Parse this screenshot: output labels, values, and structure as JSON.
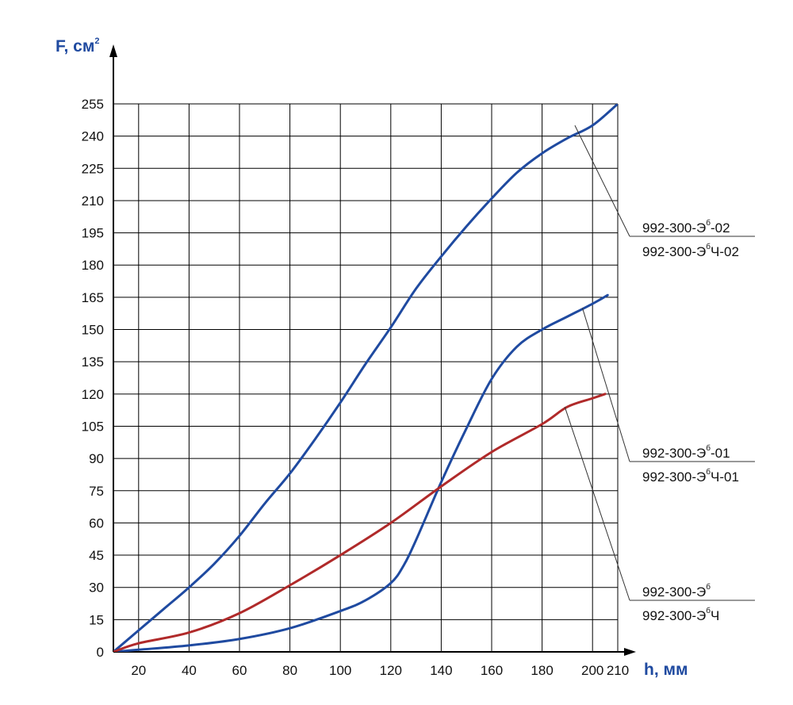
{
  "chart_data": {
    "type": "line",
    "title": "",
    "xlabel": "h, мм",
    "ylabel": "F, см",
    "ylabel_sup": "2",
    "xlim": [
      10,
      210
    ],
    "ylim": [
      0,
      255
    ],
    "grid": true,
    "x_ticks": [
      20,
      40,
      60,
      80,
      100,
      120,
      140,
      160,
      180,
      200,
      210
    ],
    "y_ticks": [
      0,
      15,
      30,
      45,
      60,
      75,
      90,
      105,
      120,
      135,
      150,
      165,
      180,
      195,
      210,
      225,
      240,
      255
    ],
    "colors": {
      "blue": "#1f4aa0",
      "red": "#b02a2a",
      "grid": "#000000",
      "leader": "#333333"
    },
    "series": [
      {
        "color": "#1f4aa0",
        "x": [
          10,
          20,
          30,
          40,
          50,
          60,
          70,
          80,
          90,
          100,
          110,
          120,
          130,
          140,
          150,
          160,
          170,
          180,
          190,
          200,
          210
        ],
        "y": [
          0,
          10,
          20,
          30,
          41,
          54,
          69,
          83,
          99,
          116,
          134,
          151,
          169,
          184,
          198,
          211,
          223,
          232,
          239,
          245,
          255
        ]
      },
      {
        "color": "#1f4aa0",
        "x": [
          10,
          20,
          40,
          60,
          80,
          100,
          110,
          120,
          125,
          130,
          140,
          150,
          160,
          170,
          180,
          190,
          200,
          206
        ],
        "y": [
          0,
          1,
          3,
          6,
          11,
          19,
          24,
          32,
          40,
          52,
          79,
          104,
          127,
          142,
          150,
          156,
          162,
          166
        ]
      },
      {
        "color": "#b02a2a",
        "x": [
          10,
          20,
          40,
          60,
          80,
          100,
          120,
          140,
          160,
          180,
          190,
          200,
          205
        ],
        "y": [
          0,
          4,
          9,
          18,
          31,
          45,
          60,
          77,
          93,
          106,
          114,
          118,
          120
        ]
      }
    ],
    "labels": [
      {
        "top_main": "992-300-Э",
        "top_sup": "б",
        "top_suffix": "-02",
        "bottom_main": "992-300-Э",
        "bottom_sup": "б",
        "bottom_suffix": "Ч-02",
        "anchor_x": 193,
        "anchor_y": 245
      },
      {
        "top_main": "992-300-Э",
        "top_sup": "б",
        "top_suffix": "-01",
        "bottom_main": "992-300-Э",
        "bottom_sup": "б",
        "bottom_suffix": "Ч-01",
        "anchor_x": 196,
        "anchor_y": 160
      },
      {
        "top_main": "992-300-Э",
        "top_sup": "б",
        "top_suffix": "",
        "bottom_main": "992-300-Э",
        "bottom_sup": "б",
        "bottom_suffix": "Ч",
        "anchor_x": 189,
        "anchor_y": 114
      }
    ]
  }
}
